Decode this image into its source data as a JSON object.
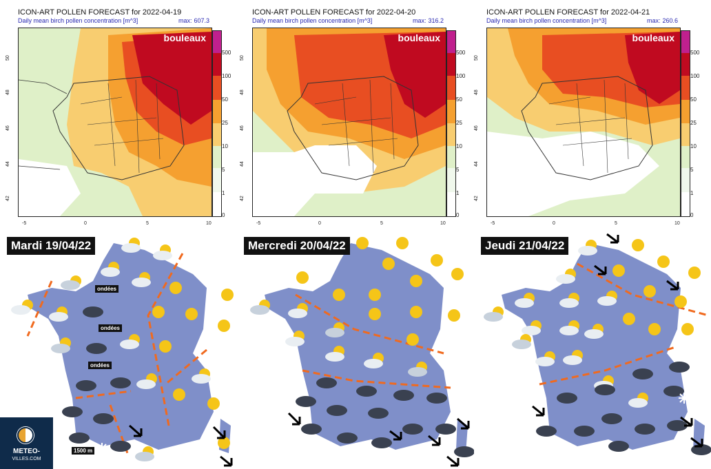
{
  "pollen_panels": [
    {
      "title": "ICON-ART POLLEN FORECAST for 2022-04-19",
      "subtitle": "Daily mean birch pollen concentration [m^3]",
      "max_label": "max:",
      "max_value": "607.3",
      "species": "bouleaux"
    },
    {
      "title": "ICON-ART POLLEN FORECAST for 2022-04-20",
      "subtitle": "Daily mean birch pollen concentration [m^3]",
      "max_label": "max:",
      "max_value": "316.2",
      "species": "bouleaux"
    },
    {
      "title": "ICON-ART POLLEN FORECAST for 2022-04-21",
      "subtitle": "Daily mean birch pollen concentration [m^3]",
      "max_label": "max:",
      "max_value": "260.6",
      "species": "bouleaux"
    }
  ],
  "colorbar": {
    "labels": [
      "500",
      "100",
      "50",
      "25",
      "10",
      "5",
      "1",
      "0"
    ],
    "colors": [
      "#c0208e",
      "#c00a20",
      "#e84e22",
      "#f5a030",
      "#f8cd70",
      "#dff0c8",
      "#f0f8ec",
      "#ffffff"
    ]
  },
  "axes": {
    "y_ticks": [
      "50",
      "48",
      "46",
      "44",
      "42"
    ],
    "x_ticks": [
      "-5",
      "0",
      "5",
      "10"
    ]
  },
  "weather_panels": [
    {
      "day": "Mardi 19/04/22",
      "tags": [
        "ondées",
        "ondées",
        "ondées",
        "1500 m"
      ]
    },
    {
      "day": "Mercredi 20/04/22",
      "tags": []
    },
    {
      "day": "Jeudi 21/04/22",
      "tags": []
    }
  ],
  "logo": {
    "line1": "METEO-",
    "line2": "VILLES.COM"
  },
  "colors": {
    "map_land": "#7f8fc9",
    "front_dashes": "#f06a1f",
    "pollen_high": "#c00a20"
  }
}
